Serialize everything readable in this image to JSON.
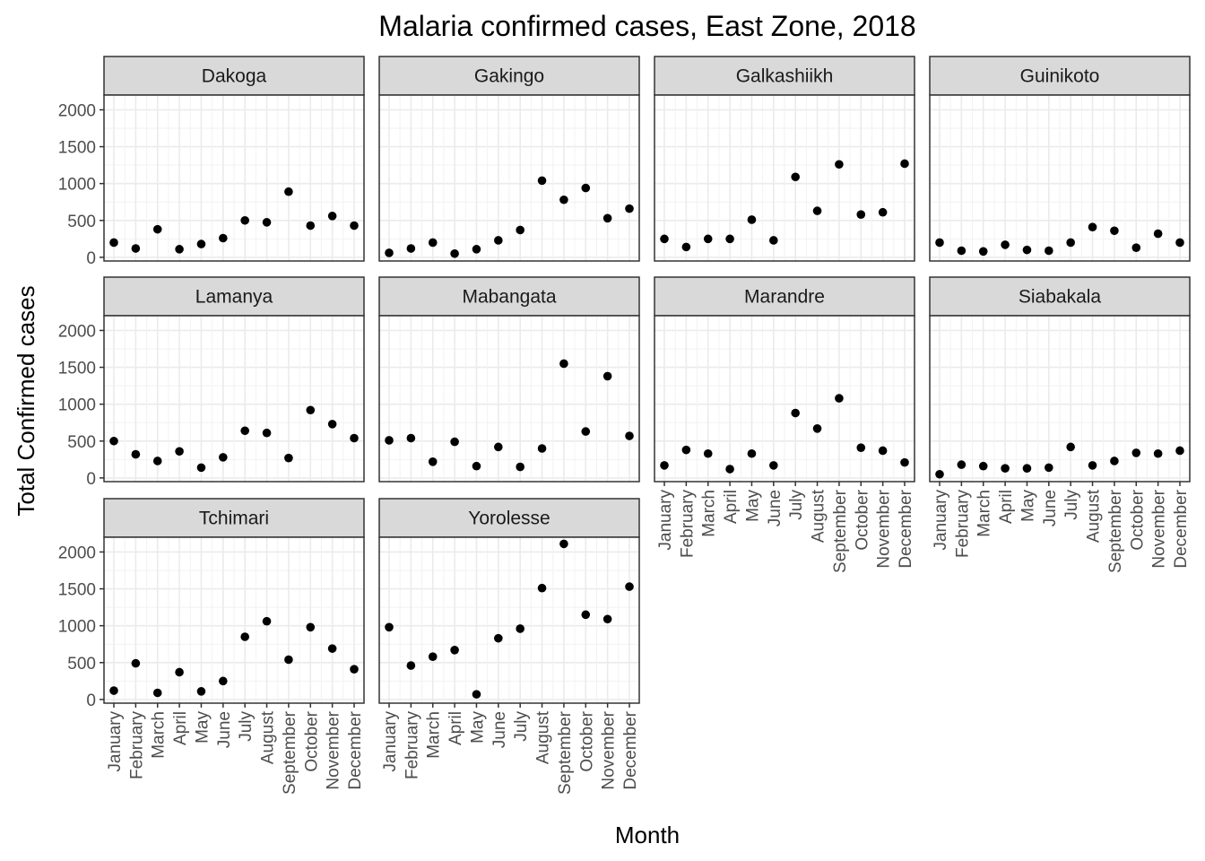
{
  "chart_data": {
    "type": "scatter",
    "title": "Malaria confirmed cases, East Zone, 2018",
    "xlabel": "Month",
    "ylabel": "Total Confirmed cases",
    "categories": [
      "January",
      "February",
      "March",
      "April",
      "May",
      "June",
      "July",
      "August",
      "September",
      "October",
      "November",
      "December"
    ],
    "yticks": [
      0,
      500,
      1000,
      1500,
      2000
    ],
    "ylim": [
      -50,
      2200
    ],
    "grid": true,
    "facet_columns": 4,
    "panels": [
      {
        "name": "Dakoga",
        "values": [
          200,
          120,
          380,
          110,
          180,
          260,
          500,
          475,
          890,
          430,
          560,
          430
        ]
      },
      {
        "name": "Gakingo",
        "values": [
          60,
          120,
          200,
          50,
          110,
          230,
          370,
          1040,
          780,
          940,
          530,
          660
        ]
      },
      {
        "name": "Galkashiikh",
        "values": [
          250,
          140,
          250,
          250,
          510,
          230,
          1090,
          630,
          1260,
          580,
          610,
          1270
        ]
      },
      {
        "name": "Guinikoto",
        "values": [
          200,
          90,
          80,
          170,
          100,
          90,
          200,
          410,
          360,
          130,
          320,
          200
        ]
      },
      {
        "name": "Lamanya",
        "values": [
          500,
          320,
          230,
          360,
          140,
          280,
          640,
          610,
          270,
          920,
          730,
          540
        ]
      },
      {
        "name": "Mabangata",
        "values": [
          510,
          540,
          220,
          490,
          160,
          420,
          150,
          400,
          1550,
          630,
          1380,
          570
        ]
      },
      {
        "name": "Marandre",
        "values": [
          170,
          380,
          330,
          120,
          330,
          170,
          880,
          670,
          1080,
          410,
          370,
          210
        ]
      },
      {
        "name": "Siabakala",
        "values": [
          50,
          180,
          160,
          130,
          130,
          140,
          420,
          170,
          230,
          340,
          330,
          370
        ]
      },
      {
        "name": "Tchimari",
        "values": [
          120,
          490,
          90,
          370,
          110,
          250,
          850,
          1060,
          540,
          980,
          690,
          410
        ]
      },
      {
        "name": "Yorolesse",
        "values": [
          980,
          460,
          580,
          670,
          70,
          830,
          960,
          1510,
          2110,
          1150,
          1090,
          1530
        ]
      }
    ]
  }
}
